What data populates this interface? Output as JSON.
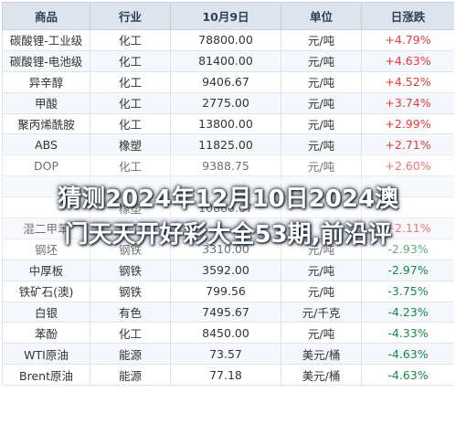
{
  "headers": [
    "商品",
    "行业",
    "10月9日",
    "单位",
    "日涨跌"
  ],
  "rows": [
    {
      "name": "碳酸锂-工业级",
      "industry": "化工",
      "price": "78800.00",
      "unit": "元/吨",
      "change": "+4.79%",
      "dir": "up"
    },
    {
      "name": "碳酸锂-电池级",
      "industry": "化工",
      "price": "81400.00",
      "unit": "元/吨",
      "change": "+4.63%",
      "dir": "up"
    },
    {
      "name": "异辛醇",
      "industry": "化工",
      "price": "9406.67",
      "unit": "元/吨",
      "change": "+4.52%",
      "dir": "up"
    },
    {
      "name": "甲酸",
      "industry": "化工",
      "price": "2775.00",
      "unit": "元/吨",
      "change": "+3.74%",
      "dir": "up"
    },
    {
      "name": "聚丙烯酰胺",
      "industry": "化工",
      "price": "13800.00",
      "unit": "元/吨",
      "change": "+2.99%",
      "dir": "up"
    },
    {
      "name": "ABS",
      "industry": "橡塑",
      "price": "11825.00",
      "unit": "元/吨",
      "change": "+2.71%",
      "dir": "up"
    },
    {
      "name": "DOP",
      "industry": "化工",
      "price": "9388.75",
      "unit": "元/吨",
      "change": "+2.60%",
      "dir": "up"
    },
    {
      "name": "",
      "industry": "",
      "price": "",
      "unit": "",
      "change": "",
      "dir": "up"
    },
    {
      "name": "",
      "industry": "橡塑",
      "price": "10866.67",
      "unit": "",
      "change": "",
      "dir": "up"
    },
    {
      "name": "混二甲苯",
      "industry": "化工",
      "price": "",
      "unit": "",
      "change": "+2.11%",
      "dir": "up"
    },
    {
      "name": "钢坯",
      "industry": "钢铁",
      "price": "3310.00",
      "unit": "元/吨",
      "change": "-2.93%",
      "dir": "down"
    },
    {
      "name": "中厚板",
      "industry": "钢铁",
      "price": "3592.00",
      "unit": "元/吨",
      "change": "-2.97%",
      "dir": "down"
    },
    {
      "name": "铁矿石(澳)",
      "industry": "钢铁",
      "price": "799.56",
      "unit": "元/吨",
      "change": "-3.75%",
      "dir": "down"
    },
    {
      "name": "白银",
      "industry": "有色",
      "price": "7495.67",
      "unit": "元/千克",
      "change": "-4.23%",
      "dir": "down"
    },
    {
      "name": "苯酚",
      "industry": "化工",
      "price": "8450.00",
      "unit": "元/吨",
      "change": "-4.33%",
      "dir": "down"
    },
    {
      "name": "WTI原油",
      "industry": "能源",
      "price": "73.57",
      "unit": "美元/桶",
      "change": "-4.63%",
      "dir": "down"
    },
    {
      "name": "Brent原油",
      "industry": "能源",
      "price": "77.18",
      "unit": "美元/桶",
      "change": "-4.63%",
      "dir": "down"
    }
  ],
  "overlay": {
    "line1": "猜测2024年12月10日2024澳",
    "line2": "门天天开好彩大全53期,前沿评"
  },
  "colors": {
    "up": "#e53b3b",
    "down": "#19884a",
    "header_bg": "#dde4ee"
  }
}
